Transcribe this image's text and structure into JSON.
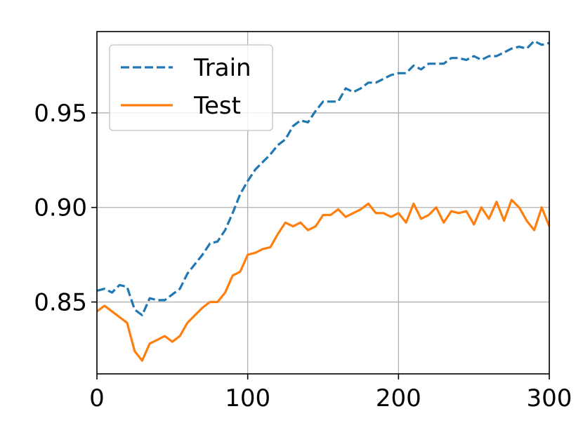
{
  "chart_data": {
    "type": "line",
    "title": "",
    "xlabel": "",
    "ylabel": "",
    "xlim": [
      0,
      300
    ],
    "ylim": [
      0.812,
      0.993
    ],
    "xticks": [
      0,
      100,
      200,
      300
    ],
    "xtick_labels": [
      "0",
      "100",
      "200",
      "300"
    ],
    "yticks": [
      0.85,
      0.9,
      0.95
    ],
    "ytick_labels": [
      "0.85",
      "0.90",
      "0.95"
    ],
    "grid": true,
    "legend_position": "top-left",
    "x": [
      0,
      5,
      10,
      15,
      20,
      25,
      30,
      35,
      40,
      45,
      50,
      55,
      60,
      65,
      70,
      75,
      80,
      85,
      90,
      95,
      100,
      105,
      110,
      115,
      120,
      125,
      130,
      135,
      140,
      145,
      150,
      155,
      160,
      165,
      170,
      175,
      180,
      185,
      190,
      195,
      200,
      205,
      210,
      215,
      220,
      225,
      230,
      235,
      240,
      245,
      250,
      255,
      260,
      265,
      270,
      275,
      280,
      285,
      290,
      295,
      300
    ],
    "series": [
      {
        "name": "Train",
        "color": "#1f77b4",
        "dash": "dashed",
        "values": [
          0.856,
          0.857,
          0.855,
          0.859,
          0.858,
          0.846,
          0.843,
          0.852,
          0.851,
          0.851,
          0.854,
          0.857,
          0.865,
          0.87,
          0.875,
          0.881,
          0.882,
          0.888,
          0.897,
          0.907,
          0.914,
          0.92,
          0.924,
          0.928,
          0.933,
          0.936,
          0.943,
          0.946,
          0.945,
          0.951,
          0.956,
          0.956,
          0.956,
          0.963,
          0.961,
          0.963,
          0.966,
          0.966,
          0.968,
          0.97,
          0.971,
          0.971,
          0.975,
          0.973,
          0.976,
          0.976,
          0.976,
          0.979,
          0.979,
          0.978,
          0.98,
          0.978,
          0.98,
          0.98,
          0.982,
          0.984,
          0.985,
          0.984,
          0.988,
          0.986,
          0.987
        ]
      },
      {
        "name": "Test",
        "color": "#ff7f0e",
        "dash": "solid",
        "values": [
          0.845,
          0.848,
          0.845,
          0.842,
          0.839,
          0.824,
          0.819,
          0.828,
          0.83,
          0.832,
          0.829,
          0.832,
          0.839,
          0.843,
          0.847,
          0.85,
          0.85,
          0.855,
          0.864,
          0.866,
          0.875,
          0.876,
          0.878,
          0.879,
          0.886,
          0.892,
          0.89,
          0.892,
          0.888,
          0.89,
          0.896,
          0.896,
          0.899,
          0.895,
          0.897,
          0.899,
          0.902,
          0.897,
          0.897,
          0.895,
          0.897,
          0.892,
          0.902,
          0.894,
          0.896,
          0.9,
          0.892,
          0.898,
          0.897,
          0.898,
          0.891,
          0.9,
          0.894,
          0.903,
          0.893,
          0.904,
          0.9,
          0.893,
          0.888,
          0.9,
          0.89
        ]
      }
    ]
  }
}
